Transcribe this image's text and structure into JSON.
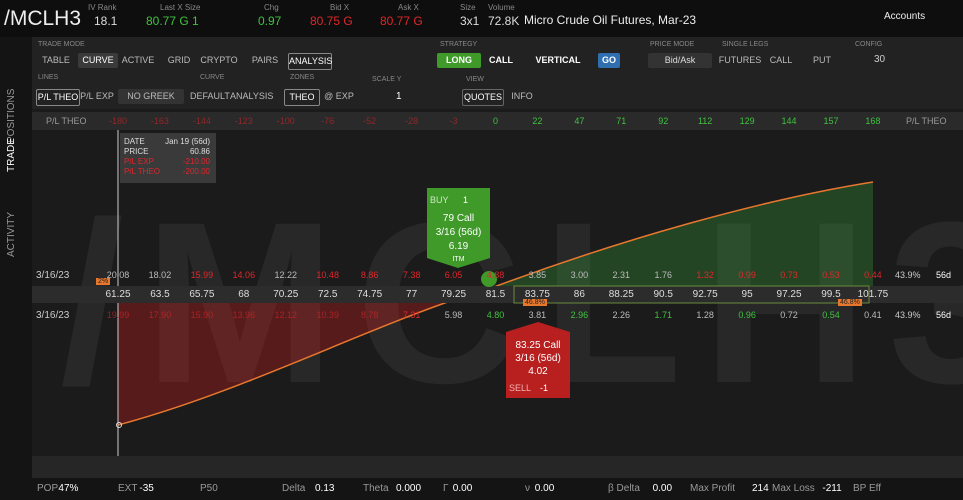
{
  "header": {
    "symbol": "/MCLH3",
    "quotes": [
      {
        "label": "IV Rank",
        "value": "18.1",
        "tone": "white"
      },
      {
        "label": "Last X Size",
        "value": "80.77 G 1",
        "tone": "green"
      },
      {
        "label": "Chg",
        "value": "0.97",
        "tone": "green"
      },
      {
        "label": "Bid X",
        "value": "80.75 G",
        "tone": "red"
      },
      {
        "label": "Ask X",
        "value": "80.77 G",
        "tone": "red"
      },
      {
        "label": "Size",
        "value": "3x1",
        "tone": "white"
      },
      {
        "label": "Volume",
        "value": "72.8K",
        "tone": "white"
      }
    ],
    "description": "Micro Crude Oil Futures, Mar-23",
    "accounts": "Accounts"
  },
  "sidebar": {
    "tabs": [
      "POSITIONS",
      "TRADE",
      "ACTIVITY"
    ]
  },
  "toolbar": {
    "trade_mode": {
      "label": "TRADE MODE",
      "buttons": [
        "TABLE",
        "CURVE",
        "ACTIVE",
        "GRID",
        "CRYPTO",
        "PAIRS",
        "ANALYSIS"
      ]
    },
    "strategy": {
      "label": "STRATEGY",
      "buttons": [
        "LONG",
        "CALL",
        "VERTICAL",
        "GO"
      ]
    },
    "price_mode": {
      "label": "PRICE MODE",
      "value": "Bid/Ask"
    },
    "single_legs": {
      "label": "SINGLE LEGS",
      "buttons": [
        "FUTURES",
        "CALL",
        "PUT"
      ]
    },
    "config": {
      "label": "CONFIG",
      "value": "30"
    },
    "lines": {
      "label": "LINES",
      "buttons": [
        "P/L THEO",
        "P/L EXP",
        "NO GREEK"
      ]
    },
    "curve": {
      "label": "CURVE",
      "buttons": [
        "DEFAULT",
        "ANALYSIS"
      ]
    },
    "zones": {
      "label": "ZONES",
      "buttons": [
        "THEO",
        "@ EXP"
      ]
    },
    "scale_y": {
      "label": "SCALE Y",
      "value": "1"
    },
    "view": {
      "label": "VIEW",
      "buttons": [
        "QUOTES",
        "INFO"
      ]
    }
  },
  "pl_row": {
    "label": "P/L THEO",
    "values": [
      "-180",
      "-163",
      "-144",
      "-123",
      "-100",
      "-76",
      "-52",
      "-28",
      "-3",
      "0",
      "22",
      "47",
      "71",
      "92",
      "112",
      "129",
      "144",
      "157",
      "168"
    ]
  },
  "tooltip": {
    "rows": [
      [
        "DATE",
        "Jan 19 (56d)"
      ],
      [
        "PRICE",
        "60.86"
      ],
      [
        "P/L EXP",
        "-210.00"
      ],
      [
        "P/L THEO",
        "-200.00"
      ]
    ]
  },
  "chain": {
    "date": "3/16/23",
    "iv": "43.9%",
    "dte": "56d",
    "calls": [
      "20.08",
      "18.02",
      "15.99",
      "14.06",
      "12.22",
      "10.48",
      "8.86",
      "7.38",
      "6.05",
      "4.88",
      "3.85",
      "3.00",
      "2.31",
      "1.76",
      "1.32",
      "0.99",
      "0.73",
      "0.53",
      "0.44"
    ],
    "strikes": [
      "61.25",
      "63.5",
      "65.75",
      "68",
      "70.25",
      "72.5",
      "74.75",
      "77",
      "79.25",
      "81.5",
      "83.75",
      "86",
      "88.25",
      "90.5",
      "92.75",
      "95",
      "97.25",
      "99.5",
      "101.75"
    ],
    "puts": [
      "19.99",
      "17.90",
      "15.90",
      "13.96",
      "12.12",
      "10.39",
      "8.78",
      "7.31",
      "5.98",
      "4.80",
      "3.81",
      "2.96",
      "2.26",
      "1.71",
      "1.28",
      "0.96",
      "0.72",
      "0.54",
      "0.41"
    ],
    "markers": [
      "2%",
      "46.8%",
      "46.8%"
    ]
  },
  "buy_leg": {
    "side": "BUY",
    "qty": "1",
    "title": "79 Call",
    "expiry": "3/16 (56d)",
    "price": "6.19",
    "tag": "ITM"
  },
  "sell_leg": {
    "side": "SELL",
    "qty": "-1",
    "title": "83.25 Call",
    "expiry": "3/16 (56d)",
    "price": "4.02"
  },
  "stats": [
    [
      "POP",
      "47%"
    ],
    [
      "EXT",
      "-35"
    ],
    [
      "P50",
      ""
    ],
    [
      "Delta",
      "0.13"
    ],
    [
      "Theta",
      "0.000"
    ],
    [
      "Γ",
      "0.00"
    ],
    [
      "ν",
      "0.00"
    ],
    [
      "β Delta",
      "0.00"
    ],
    [
      "Max Profit",
      "214"
    ],
    [
      "Max Loss",
      "-211"
    ],
    [
      "BP Eff",
      ""
    ]
  ]
}
